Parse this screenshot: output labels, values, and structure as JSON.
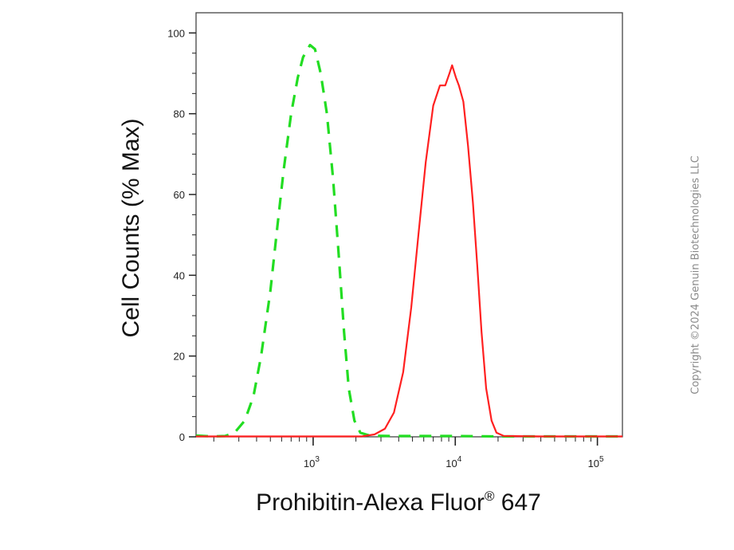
{
  "chart_data": {
    "type": "line",
    "title": "",
    "xlabel": "Prohibitin-Alexa Fluor",
    "xlabel_mark": "®",
    "xlabel_suffix": " 647",
    "ylabel": "Cell Counts (% Max)",
    "xscale": "log",
    "xlim": [
      150,
      150000
    ],
    "ylim": [
      0,
      105
    ],
    "yticks": [
      "0",
      "20",
      "40",
      "60",
      "80",
      "100"
    ],
    "xticks": [
      {
        "base": "10",
        "exp": "3",
        "value": 1000
      },
      {
        "base": "10",
        "exp": "4",
        "value": 10000
      },
      {
        "base": "10",
        "exp": "5",
        "value": 100000
      }
    ],
    "grid": false,
    "series": [
      {
        "color": "#22dd22",
        "style": "dashed",
        "points": [
          [
            150,
            0.3
          ],
          [
            200,
            0.1
          ],
          [
            240,
            0.2
          ],
          [
            280,
            1
          ],
          [
            330,
            4
          ],
          [
            380,
            10
          ],
          [
            430,
            20
          ],
          [
            500,
            36
          ],
          [
            560,
            52
          ],
          [
            620,
            66
          ],
          [
            700,
            80
          ],
          [
            780,
            89
          ],
          [
            850,
            94
          ],
          [
            950,
            97
          ],
          [
            1030,
            96
          ],
          [
            1130,
            90
          ],
          [
            1250,
            80
          ],
          [
            1380,
            64
          ],
          [
            1520,
            44
          ],
          [
            1650,
            26
          ],
          [
            1780,
            12
          ],
          [
            1950,
            4
          ],
          [
            2150,
            1
          ],
          [
            2500,
            0.3
          ],
          [
            3500,
            0.2
          ],
          [
            6000,
            0.2
          ],
          [
            10000,
            0.2
          ],
          [
            20000,
            0.1
          ],
          [
            60000,
            0.1
          ],
          [
            150000,
            0.1
          ]
        ]
      },
      {
        "color": "#ff2020",
        "style": "solid",
        "points": [
          [
            150,
            0.1
          ],
          [
            2200,
            0.1
          ],
          [
            2700,
            0.6
          ],
          [
            3200,
            2
          ],
          [
            3700,
            6
          ],
          [
            4300,
            16
          ],
          [
            4900,
            32
          ],
          [
            5500,
            50
          ],
          [
            6200,
            68
          ],
          [
            7000,
            82
          ],
          [
            7800,
            87
          ],
          [
            8500,
            87
          ],
          [
            9100,
            90
          ],
          [
            9500,
            92
          ],
          [
            10100,
            89
          ],
          [
            10600,
            87
          ],
          [
            11400,
            83
          ],
          [
            12300,
            72
          ],
          [
            13300,
            58
          ],
          [
            14300,
            42
          ],
          [
            15300,
            26
          ],
          [
            16500,
            12
          ],
          [
            18000,
            4
          ],
          [
            19500,
            1
          ],
          [
            22000,
            0.2
          ],
          [
            40000,
            0.1
          ],
          [
            150000,
            0.1
          ]
        ]
      }
    ]
  },
  "watermark": "Copyright ©2024 Genuin Biotechnologies LLC"
}
